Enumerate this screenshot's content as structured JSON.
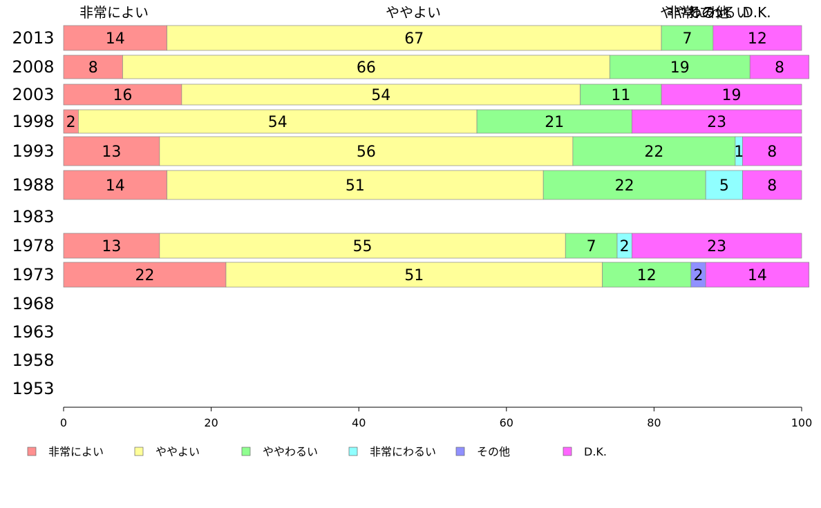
{
  "chart_data": {
    "type": "bar",
    "orientation": "horizontal",
    "stacked": true,
    "categories": [
      "2013",
      "2008",
      "2003",
      "1998",
      "1993",
      "1988",
      "1983",
      "1978",
      "1973",
      "1968",
      "1963",
      "1958",
      "1953"
    ],
    "series": [
      {
        "name": "非常によい",
        "color": "#ff9090",
        "values": [
          14,
          8,
          16,
          2,
          13,
          14,
          null,
          13,
          22,
          null,
          null,
          null,
          null
        ]
      },
      {
        "name": "ややよい",
        "color": "#ffff99",
        "values": [
          67,
          66,
          54,
          54,
          56,
          51,
          null,
          55,
          51,
          null,
          null,
          null,
          null
        ]
      },
      {
        "name": "ややわるい",
        "color": "#90ff90",
        "values": [
          7,
          19,
          11,
          21,
          22,
          22,
          null,
          7,
          12,
          null,
          null,
          null,
          null
        ]
      },
      {
        "name": "非常にわるい",
        "color": "#90ffff",
        "values": [
          0,
          0,
          0,
          0,
          1,
          5,
          null,
          2,
          0,
          null,
          null,
          null,
          null
        ]
      },
      {
        "name": "その他",
        "color": "#9090ff",
        "values": [
          0,
          0,
          0,
          0,
          0,
          0,
          null,
          0,
          2,
          null,
          null,
          null,
          null
        ]
      },
      {
        "name": "D.K.",
        "color": "#ff66ff",
        "values": [
          12,
          8,
          19,
          23,
          8,
          8,
          null,
          23,
          14,
          null,
          null,
          null,
          null
        ]
      }
    ],
    "top_labels": [
      "非常によい",
      "ややよい",
      "ややわるい",
      "非常にわるい",
      "その他",
      "D.K."
    ],
    "x_ticks": [
      "0",
      "20",
      "40",
      "60",
      "80",
      "100"
    ],
    "xlim": [
      0,
      100
    ],
    "legend_position": "bottom-left"
  }
}
